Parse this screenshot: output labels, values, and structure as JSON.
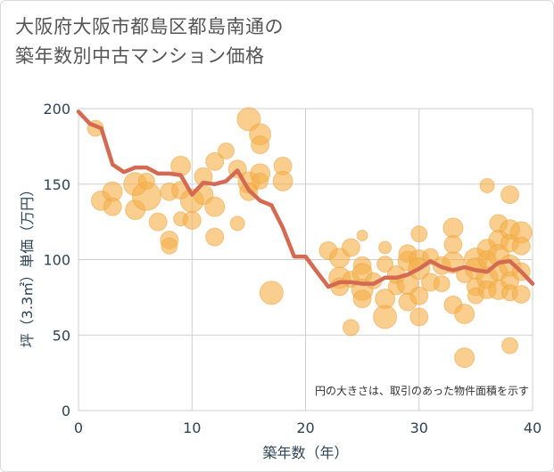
{
  "title_lines": [
    "大阪府大阪市都島区都島南通の",
    "築年数別中古マンション価格"
  ],
  "colors": {
    "bubble_fill": "#f5b04b",
    "bubble_stroke": "#e9a23a",
    "line": "#d46a52",
    "grid": "#cfcfcf",
    "axis_text": "#2d4454"
  },
  "chart_data": {
    "type": "scatter",
    "xlabel": "築年数（年）",
    "ylabel": "坪（3.3㎡）単価（万円）",
    "xlim": [
      0,
      40
    ],
    "ylim": [
      0,
      200
    ],
    "x_ticks": [
      0,
      10,
      20,
      30,
      40
    ],
    "y_ticks": [
      0,
      50,
      100,
      150,
      200
    ],
    "grid": true,
    "annotation": "円の大きさは、取引のあった物件面積を示す",
    "line_series": {
      "x": [
        0,
        1,
        2,
        3,
        4,
        5,
        6,
        7,
        8,
        9,
        10,
        11,
        12,
        13,
        14,
        15,
        16,
        17,
        18,
        19,
        20,
        21,
        22,
        23,
        24,
        25,
        26,
        27,
        28,
        29,
        30,
        31,
        32,
        33,
        34,
        35,
        36,
        37,
        38,
        39,
        40
      ],
      "y": [
        198,
        190,
        187,
        163,
        158,
        161,
        161,
        157,
        157,
        156,
        143,
        151,
        150,
        152,
        159,
        146,
        139,
        136,
        121,
        102,
        102,
        92,
        82,
        85,
        85,
        84,
        84,
        88,
        88,
        90,
        94,
        99,
        95,
        93,
        95,
        93,
        92,
        98,
        99,
        92,
        84
      ]
    },
    "bubbles": [
      {
        "x": 1.5,
        "y": 187,
        "s": 9
      },
      {
        "x": 2,
        "y": 139,
        "s": 11
      },
      {
        "x": 3,
        "y": 145,
        "s": 11
      },
      {
        "x": 3,
        "y": 135,
        "s": 10
      },
      {
        "x": 5,
        "y": 150,
        "s": 13
      },
      {
        "x": 5,
        "y": 133,
        "s": 11
      },
      {
        "x": 6,
        "y": 142,
        "s": 16
      },
      {
        "x": 6,
        "y": 152,
        "s": 9
      },
      {
        "x": 7,
        "y": 125,
        "s": 10
      },
      {
        "x": 8,
        "y": 145,
        "s": 10
      },
      {
        "x": 8,
        "y": 113,
        "s": 10
      },
      {
        "x": 8,
        "y": 109,
        "s": 9
      },
      {
        "x": 9,
        "y": 162,
        "s": 11
      },
      {
        "x": 9,
        "y": 146,
        "s": 10
      },
      {
        "x": 9,
        "y": 127,
        "s": 8
      },
      {
        "x": 10,
        "y": 139,
        "s": 13
      },
      {
        "x": 10,
        "y": 126,
        "s": 10
      },
      {
        "x": 11,
        "y": 155,
        "s": 10
      },
      {
        "x": 11,
        "y": 143,
        "s": 11
      },
      {
        "x": 12,
        "y": 165,
        "s": 10
      },
      {
        "x": 12,
        "y": 135,
        "s": 11
      },
      {
        "x": 12,
        "y": 115,
        "s": 10
      },
      {
        "x": 13,
        "y": 172,
        "s": 9
      },
      {
        "x": 14,
        "y": 160,
        "s": 10
      },
      {
        "x": 14,
        "y": 124,
        "s": 8
      },
      {
        "x": 15,
        "y": 193,
        "s": 13
      },
      {
        "x": 15,
        "y": 151,
        "s": 12
      },
      {
        "x": 15,
        "y": 145,
        "s": 10
      },
      {
        "x": 16,
        "y": 183,
        "s": 12
      },
      {
        "x": 16,
        "y": 176,
        "s": 10
      },
      {
        "x": 16,
        "y": 157,
        "s": 11
      },
      {
        "x": 16,
        "y": 152,
        "s": 9
      },
      {
        "x": 17,
        "y": 78,
        "s": 13
      },
      {
        "x": 18,
        "y": 162,
        "s": 10
      },
      {
        "x": 18,
        "y": 152,
        "s": 11
      },
      {
        "x": 22,
        "y": 106,
        "s": 10
      },
      {
        "x": 23,
        "y": 101,
        "s": 11
      },
      {
        "x": 23,
        "y": 88,
        "s": 12
      },
      {
        "x": 23,
        "y": 82,
        "s": 10
      },
      {
        "x": 24,
        "y": 108,
        "s": 10
      },
      {
        "x": 24,
        "y": 87,
        "s": 9
      },
      {
        "x": 24,
        "y": 55,
        "s": 9
      },
      {
        "x": 25,
        "y": 116,
        "s": 6
      },
      {
        "x": 25,
        "y": 96,
        "s": 10
      },
      {
        "x": 25,
        "y": 91,
        "s": 11
      },
      {
        "x": 25,
        "y": 80,
        "s": 12
      },
      {
        "x": 25,
        "y": 74,
        "s": 10
      },
      {
        "x": 26,
        "y": 86,
        "s": 9
      },
      {
        "x": 27,
        "y": 108,
        "s": 7
      },
      {
        "x": 27,
        "y": 97,
        "s": 9
      },
      {
        "x": 27,
        "y": 74,
        "s": 11
      },
      {
        "x": 27,
        "y": 62,
        "s": 13
      },
      {
        "x": 28,
        "y": 90,
        "s": 10
      },
      {
        "x": 28,
        "y": 82,
        "s": 9
      },
      {
        "x": 29,
        "y": 104,
        "s": 10
      },
      {
        "x": 29,
        "y": 99,
        "s": 11
      },
      {
        "x": 29,
        "y": 84,
        "s": 12
      },
      {
        "x": 29,
        "y": 72,
        "s": 10
      },
      {
        "x": 30,
        "y": 117,
        "s": 9
      },
      {
        "x": 30,
        "y": 100,
        "s": 11
      },
      {
        "x": 30,
        "y": 94,
        "s": 12
      },
      {
        "x": 30,
        "y": 76,
        "s": 10
      },
      {
        "x": 30,
        "y": 62,
        "s": 10
      },
      {
        "x": 31,
        "y": 102,
        "s": 9
      },
      {
        "x": 31,
        "y": 85,
        "s": 10
      },
      {
        "x": 32,
        "y": 96,
        "s": 10
      },
      {
        "x": 32,
        "y": 84,
        "s": 9
      },
      {
        "x": 33,
        "y": 121,
        "s": 11
      },
      {
        "x": 33,
        "y": 110,
        "s": 10
      },
      {
        "x": 33,
        "y": 98,
        "s": 12
      },
      {
        "x": 33,
        "y": 70,
        "s": 10
      },
      {
        "x": 34,
        "y": 64,
        "s": 11
      },
      {
        "x": 34,
        "y": 35,
        "s": 11
      },
      {
        "x": 34,
        "y": 90,
        "s": 9
      },
      {
        "x": 35,
        "y": 100,
        "s": 13
      },
      {
        "x": 35,
        "y": 94,
        "s": 12
      },
      {
        "x": 35,
        "y": 82,
        "s": 10
      },
      {
        "x": 35,
        "y": 76,
        "s": 9
      },
      {
        "x": 36,
        "y": 149,
        "s": 8
      },
      {
        "x": 36,
        "y": 107,
        "s": 11
      },
      {
        "x": 36,
        "y": 100,
        "s": 10
      },
      {
        "x": 36,
        "y": 88,
        "s": 12
      },
      {
        "x": 36,
        "y": 80,
        "s": 10
      },
      {
        "x": 37,
        "y": 124,
        "s": 10
      },
      {
        "x": 37,
        "y": 113,
        "s": 11
      },
      {
        "x": 37,
        "y": 103,
        "s": 12
      },
      {
        "x": 37,
        "y": 92,
        "s": 10
      },
      {
        "x": 37,
        "y": 80,
        "s": 11
      },
      {
        "x": 38,
        "y": 143,
        "s": 10
      },
      {
        "x": 38,
        "y": 120,
        "s": 11
      },
      {
        "x": 38,
        "y": 111,
        "s": 10
      },
      {
        "x": 38,
        "y": 96,
        "s": 12
      },
      {
        "x": 38,
        "y": 86,
        "s": 10
      },
      {
        "x": 38,
        "y": 78,
        "s": 9
      },
      {
        "x": 38,
        "y": 43,
        "s": 9
      },
      {
        "x": 39,
        "y": 118,
        "s": 12
      },
      {
        "x": 39,
        "y": 109,
        "s": 10
      },
      {
        "x": 39,
        "y": 92,
        "s": 10
      },
      {
        "x": 39,
        "y": 77,
        "s": 10
      }
    ]
  }
}
